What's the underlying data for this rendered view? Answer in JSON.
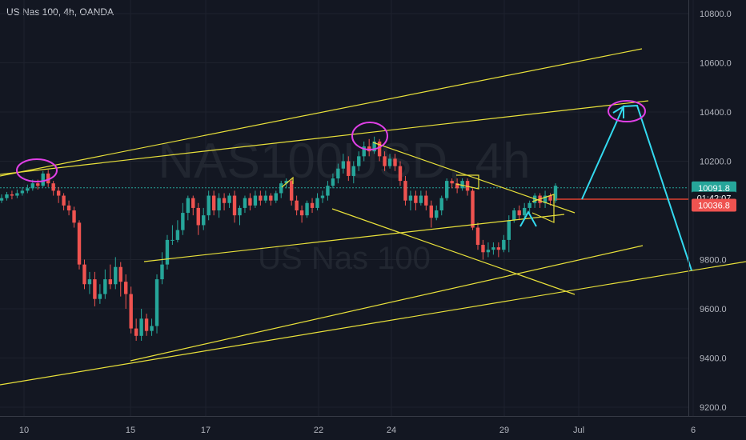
{
  "chart_data": {
    "type": "candlestick",
    "title": "US Nas 100, 4h, OANDA",
    "watermark": {
      "symbol": "NAS100USD, 4h",
      "name": "US Nas 100"
    },
    "x_ticks": [
      "10",
      "15",
      "17",
      "22",
      "24",
      "29",
      "Jul",
      "6"
    ],
    "y_ticks": [
      "10800.0",
      "10600.0",
      "10400.0",
      "10200.0",
      "9800.0",
      "9600.0",
      "9400.0",
      "9200.0"
    ],
    "ylim": [
      9180,
      10850
    ],
    "price_badges": [
      {
        "label": "10091.8",
        "value": 10091.8,
        "color": "#26a69a"
      },
      {
        "label": "01:42:07",
        "value": 10050,
        "color": "#131722"
      },
      {
        "label": "10036.8",
        "value": 10021,
        "color": "#ef5350"
      }
    ],
    "colors": {
      "up": "#26a69a",
      "down": "#ef5350",
      "trend": "#e8e03a",
      "forecast": "#33d9ef",
      "highlight": "#e040e6",
      "horizontal": "#e0412f",
      "dotted": "#26a69a"
    },
    "candles": [
      [
        10040,
        10050,
        10065,
        10030
      ],
      [
        10050,
        10065,
        10075,
        10040
      ],
      [
        10065,
        10060,
        10080,
        10045
      ],
      [
        10060,
        10070,
        10085,
        10050
      ],
      [
        10070,
        10080,
        10095,
        10060
      ],
      [
        10080,
        10090,
        10105,
        10070
      ],
      [
        10090,
        10110,
        10125,
        10080
      ],
      [
        10110,
        10100,
        10125,
        10085
      ],
      [
        10100,
        10150,
        10160,
        10095
      ],
      [
        10150,
        10110,
        10165,
        10095
      ],
      [
        10110,
        10080,
        10120,
        10060
      ],
      [
        10080,
        10060,
        10095,
        10030
      ],
      [
        10060,
        10020,
        10070,
        10000
      ],
      [
        10020,
        10000,
        10040,
        9980
      ],
      [
        10000,
        9950,
        10015,
        9930
      ],
      [
        9950,
        9780,
        9960,
        9760
      ],
      [
        9780,
        9700,
        9800,
        9680
      ],
      [
        9700,
        9720,
        9750,
        9660
      ],
      [
        9720,
        9640,
        9750,
        9610
      ],
      [
        9640,
        9660,
        9700,
        9620
      ],
      [
        9660,
        9720,
        9760,
        9640
      ],
      [
        9720,
        9700,
        9780,
        9680
      ],
      [
        9700,
        9770,
        9810,
        9680
      ],
      [
        9770,
        9710,
        9790,
        9650
      ],
      [
        9710,
        9660,
        9740,
        9600
      ],
      [
        9660,
        9520,
        9690,
        9500
      ],
      [
        9520,
        9490,
        9560,
        9470
      ],
      [
        9490,
        9560,
        9600,
        9470
      ],
      [
        9560,
        9510,
        9580,
        9490
      ],
      [
        9510,
        9530,
        9560,
        9490
      ],
      [
        9530,
        9720,
        9740,
        9500
      ],
      [
        9720,
        9780,
        9830,
        9700
      ],
      [
        9780,
        9880,
        9900,
        9760
      ],
      [
        9880,
        9880,
        9940,
        9860
      ],
      [
        9880,
        9920,
        9960,
        9870
      ],
      [
        9920,
        9990,
        10030,
        9900
      ],
      [
        9990,
        10050,
        10060,
        9960
      ],
      [
        10050,
        10010,
        10060,
        9980
      ],
      [
        10010,
        9940,
        10030,
        9900
      ],
      [
        9940,
        9980,
        10010,
        9920
      ],
      [
        9980,
        10060,
        10080,
        9960
      ],
      [
        10060,
        10000,
        10080,
        9980
      ],
      [
        10000,
        10050,
        10070,
        9970
      ],
      [
        10050,
        10030,
        10070,
        10000
      ],
      [
        10030,
        10060,
        10070,
        10010
      ],
      [
        10060,
        9980,
        10080,
        9950
      ],
      [
        9980,
        10010,
        10020,
        9940
      ],
      [
        10010,
        10050,
        10060,
        9990
      ],
      [
        10050,
        10020,
        10070,
        10000
      ],
      [
        10020,
        10060,
        10080,
        10010
      ],
      [
        10060,
        10040,
        10080,
        10020
      ],
      [
        10040,
        10060,
        10080,
        10030
      ],
      [
        10060,
        10040,
        10070,
        10020
      ],
      [
        10040,
        10070,
        10080,
        10030
      ],
      [
        10070,
        10110,
        10120,
        10050
      ],
      [
        10110,
        10120,
        10130,
        10090
      ],
      [
        10120,
        10040,
        10130,
        10020
      ],
      [
        10040,
        10000,
        10060,
        9980
      ],
      [
        10000,
        9980,
        10020,
        9950
      ],
      [
        9980,
        10030,
        10040,
        9970
      ],
      [
        10030,
        10010,
        10050,
        9990
      ],
      [
        10010,
        10050,
        10070,
        10000
      ],
      [
        10050,
        10060,
        10080,
        10030
      ],
      [
        10060,
        10100,
        10120,
        10040
      ],
      [
        10100,
        10130,
        10150,
        10090
      ],
      [
        10130,
        10170,
        10190,
        10110
      ],
      [
        10170,
        10200,
        10230,
        10150
      ],
      [
        10200,
        10140,
        10220,
        10120
      ],
      [
        10140,
        10180,
        10200,
        10110
      ],
      [
        10180,
        10220,
        10240,
        10160
      ],
      [
        10220,
        10260,
        10280,
        10200
      ],
      [
        10260,
        10240,
        10290,
        10220
      ],
      [
        10240,
        10280,
        10300,
        10230
      ],
      [
        10280,
        10220,
        10290,
        10200
      ],
      [
        10220,
        10180,
        10240,
        10160
      ],
      [
        10180,
        10210,
        10230,
        10170
      ],
      [
        10210,
        10180,
        10230,
        10160
      ],
      [
        10180,
        10120,
        10200,
        10100
      ],
      [
        10120,
        10040,
        10140,
        10020
      ],
      [
        10040,
        10060,
        10080,
        10000
      ],
      [
        10060,
        10030,
        10080,
        10000
      ],
      [
        10030,
        10060,
        10080,
        10020
      ],
      [
        10060,
        10020,
        10080,
        10000
      ],
      [
        10020,
        9970,
        10040,
        9930
      ],
      [
        9970,
        10000,
        10020,
        9960
      ],
      [
        10000,
        10050,
        10060,
        9980
      ],
      [
        10050,
        10120,
        10130,
        10040
      ],
      [
        10120,
        10110,
        10130,
        10090
      ],
      [
        10110,
        10090,
        10130,
        10070
      ],
      [
        10090,
        10120,
        10130,
        10080
      ],
      [
        10120,
        10080,
        10130,
        10060
      ],
      [
        10080,
        9930,
        10090,
        9920
      ],
      [
        9930,
        9860,
        9950,
        9840
      ],
      [
        9860,
        9830,
        9880,
        9800
      ],
      [
        9830,
        9840,
        9870,
        9810
      ],
      [
        9840,
        9850,
        9870,
        9820
      ],
      [
        9850,
        9840,
        9870,
        9810
      ],
      [
        9840,
        9880,
        9900,
        9830
      ],
      [
        9880,
        9960,
        9980,
        9830
      ],
      [
        9960,
        10000,
        10010,
        9950
      ],
      [
        10000,
        9980,
        10020,
        9960
      ],
      [
        9980,
        10010,
        10030,
        9970
      ],
      [
        10010,
        10030,
        10040,
        9990
      ],
      [
        10030,
        10060,
        10070,
        10010
      ],
      [
        10060,
        10030,
        10070,
        10010
      ],
      [
        10030,
        10060,
        10080,
        10010
      ],
      [
        10060,
        10040,
        10070,
        10020
      ],
      [
        10040,
        10100,
        10110,
        10030
      ]
    ]
  }
}
